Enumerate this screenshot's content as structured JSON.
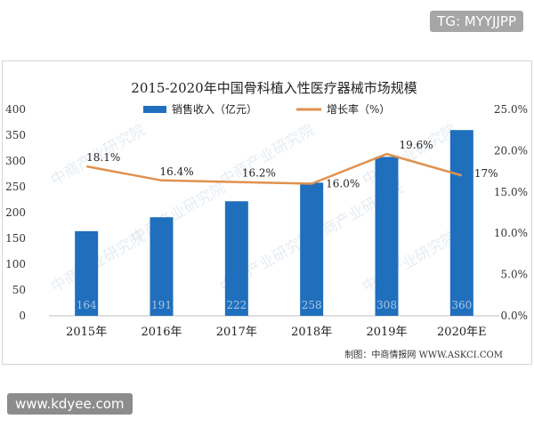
{
  "watermark_tag": "TG: MYYJJPP",
  "site_tag": "www.kdyee.com",
  "credit": "制图：中商情报网 WWW.ASKCI.COM",
  "watermark_text": "中商产业研究院",
  "chart_data": {
    "type": "bar+line",
    "title": "2015-2020年中国骨科植入性医疗器械市场规模",
    "categories": [
      "2015年",
      "2016年",
      "2017年",
      "2018年",
      "2019年",
      "2020年E"
    ],
    "series": [
      {
        "name": "销售收入（亿元）",
        "type": "bar",
        "axis": "left",
        "values": [
          164,
          191,
          222,
          258,
          308,
          360
        ],
        "labels": [
          "164",
          "191",
          "222",
          "258",
          "308",
          "360"
        ],
        "color": "#1f6fbd"
      },
      {
        "name": "增长率（%）",
        "type": "line",
        "axis": "right",
        "values": [
          18.1,
          16.4,
          16.2,
          16.0,
          19.6,
          17.0
        ],
        "labels": [
          "18.1%",
          "16.4%",
          "16.2%",
          "16.0%",
          "19.6%",
          "17%"
        ],
        "color": "#e0914f"
      }
    ],
    "y_left": {
      "min": 0,
      "max": 400,
      "ticks": [
        "0",
        "50",
        "100",
        "150",
        "200",
        "250",
        "300",
        "350",
        "400"
      ]
    },
    "y_right": {
      "min": 0,
      "max": 25,
      "ticks": [
        "0.0%",
        "5.0%",
        "10.0%",
        "15.0%",
        "20.0%",
        "25.0%"
      ]
    },
    "legend_position": "top-center",
    "grid": false
  }
}
